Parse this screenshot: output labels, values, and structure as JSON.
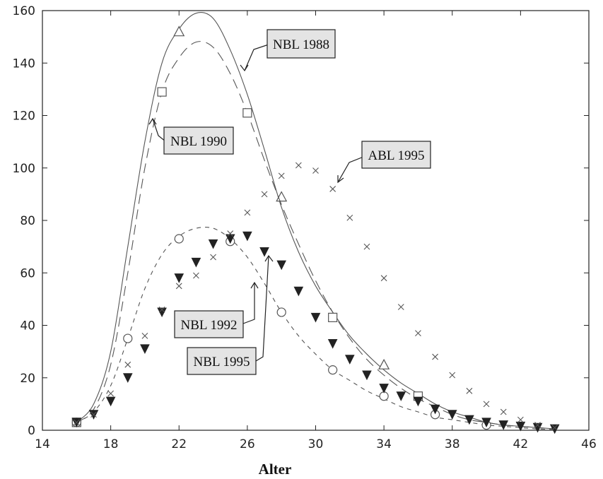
{
  "chart_data": {
    "type": "line",
    "title": "",
    "xlabel": "Alter",
    "ylabel": "",
    "xlim": [
      14,
      46
    ],
    "ylim": [
      0,
      160
    ],
    "xticks": [
      14,
      18,
      22,
      26,
      30,
      34,
      38,
      42,
      46
    ],
    "yticks": [
      0,
      20,
      40,
      60,
      80,
      100,
      120,
      140,
      160
    ],
    "grid": false,
    "series": [
      {
        "name": "NBL 1988",
        "style": "solid",
        "marker": "triangle",
        "color": "#555555",
        "x": [
          16,
          17,
          18,
          19,
          20,
          21,
          22,
          23,
          24,
          25,
          26,
          27,
          28,
          29,
          30,
          31,
          32,
          33,
          34,
          35,
          36,
          37,
          38,
          39,
          40,
          41,
          42,
          43,
          44
        ],
        "values": [
          3,
          10,
          30,
          70,
          110,
          140,
          153,
          159,
          157,
          145,
          128,
          107,
          85,
          68,
          55,
          45,
          36,
          29,
          23,
          18,
          14,
          10,
          7,
          5,
          3,
          2,
          1.5,
          1,
          0.5
        ],
        "markers_x": [
          22,
          28,
          34
        ],
        "markers_y": [
          152,
          89,
          25
        ]
      },
      {
        "name": "NBL 1990",
        "style": "long-dash",
        "marker": "square",
        "color": "#555555",
        "x": [
          16,
          17,
          18,
          19,
          20,
          21,
          22,
          23,
          24,
          25,
          26,
          27,
          28,
          29,
          30,
          31,
          32,
          33,
          34,
          35,
          36,
          37,
          38,
          39,
          40,
          41,
          42,
          43,
          44
        ],
        "values": [
          3,
          8,
          25,
          60,
          100,
          129,
          142,
          148,
          146,
          136,
          121,
          103,
          86,
          71,
          57,
          45,
          35,
          27,
          21,
          16,
          12,
          9,
          6,
          4,
          3,
          2,
          1.5,
          1,
          0.5
        ],
        "markers_x": [
          16,
          21,
          26,
          31,
          36
        ],
        "markers_y": [
          3,
          129,
          121,
          43,
          13
        ]
      },
      {
        "name": "NBL 1992",
        "style": "short-dash",
        "marker": "circle",
        "color": "#555555",
        "x": [
          16,
          17,
          18,
          19,
          20,
          21,
          22,
          23,
          24,
          25,
          26,
          27,
          28,
          29,
          30,
          31,
          32,
          33,
          34,
          35,
          36,
          37,
          38,
          39,
          40,
          41,
          42,
          43,
          44
        ],
        "values": [
          3,
          7,
          17,
          35,
          54,
          67,
          74,
          77,
          77,
          73,
          66,
          56,
          45,
          36,
          29,
          23,
          19,
          15,
          12,
          9,
          7,
          5,
          4,
          3,
          2,
          1.5,
          1,
          0.5,
          0.3
        ],
        "markers_x": [
          16,
          19,
          22,
          25,
          28,
          31,
          34,
          37,
          40
        ],
        "markers_y": [
          3,
          35,
          73,
          72,
          45,
          23,
          13,
          6,
          2
        ]
      },
      {
        "name": "NBL 1995",
        "style": "markers",
        "marker": "filled-triangle-down",
        "color": "#222222",
        "x": [
          16,
          17,
          18,
          19,
          20,
          21,
          22,
          23,
          24,
          25,
          26,
          27,
          28,
          29,
          30,
          31,
          32,
          33,
          34,
          35,
          36,
          37,
          38,
          39,
          40,
          41,
          42,
          43,
          44
        ],
        "values": [
          3,
          6,
          11,
          20,
          31,
          45,
          58,
          64,
          71,
          73,
          74,
          68,
          63,
          53,
          43,
          33,
          27,
          21,
          16,
          13,
          11,
          8,
          6,
          4,
          3,
          2,
          1.5,
          1,
          0.5
        ]
      },
      {
        "name": "ABL 1995",
        "style": "markers",
        "marker": "x",
        "color": "#555555",
        "x": [
          16,
          17,
          18,
          19,
          20,
          21,
          22,
          23,
          24,
          25,
          26,
          27,
          28,
          29,
          30,
          31,
          32,
          33,
          34,
          35,
          36,
          37,
          38,
          39,
          40,
          41,
          42,
          43,
          44
        ],
        "values": [
          3,
          6,
          14,
          25,
          36,
          46,
          55,
          59,
          66,
          75,
          83,
          90,
          97,
          101,
          99,
          92,
          81,
          70,
          58,
          47,
          37,
          28,
          21,
          15,
          10,
          7,
          4,
          2,
          1
        ]
      }
    ],
    "annotations": [
      {
        "text": "NBL 1988",
        "series": 0
      },
      {
        "text": "NBL 1990",
        "series": 1
      },
      {
        "text": "ABL 1995",
        "series": 4
      },
      {
        "text": "NBL 1992",
        "series": 2
      },
      {
        "text": "NBL 1995",
        "series": 3
      }
    ]
  }
}
